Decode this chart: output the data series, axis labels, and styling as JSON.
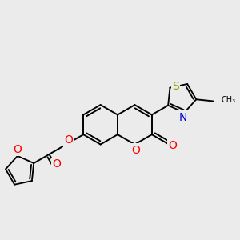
{
  "bg_color": "#ebebeb",
  "bond_color": "#000000",
  "O_color": "#ff0000",
  "N_color": "#0000cc",
  "S_color": "#999900",
  "bond_width": 1.4,
  "font_size": 8,
  "figsize": [
    3.0,
    3.0
  ],
  "dpi": 100,
  "xlim": [
    0,
    10
  ],
  "ylim": [
    0,
    10
  ]
}
